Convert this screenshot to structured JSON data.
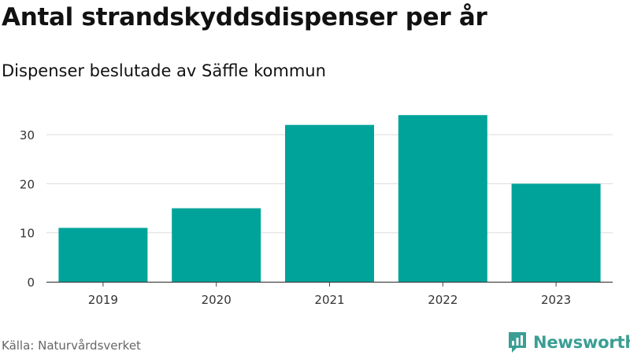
{
  "brand": {
    "name": "Newsworthy",
    "icon": "newsworthy-logo-icon",
    "color": "#3a9e94"
  },
  "source": "Källa: Naturvårdsverket",
  "chart_data": {
    "type": "bar",
    "title": "Antal strandskyddsdispenser per år",
    "subtitle": "Dispenser beslutade av Säffle kommun",
    "categories": [
      "2019",
      "2020",
      "2021",
      "2022",
      "2023"
    ],
    "values": [
      11,
      15,
      32,
      34,
      20
    ],
    "yticks": [
      0,
      10,
      20,
      30
    ],
    "ylim": [
      0,
      35
    ],
    "xlabel": "",
    "ylabel": "",
    "grid": true,
    "legend": "none",
    "bar_color": "#00a39a",
    "grid_color": "#dcdcdc",
    "axis_color": "#444444",
    "tick_label_color": "#333333"
  }
}
